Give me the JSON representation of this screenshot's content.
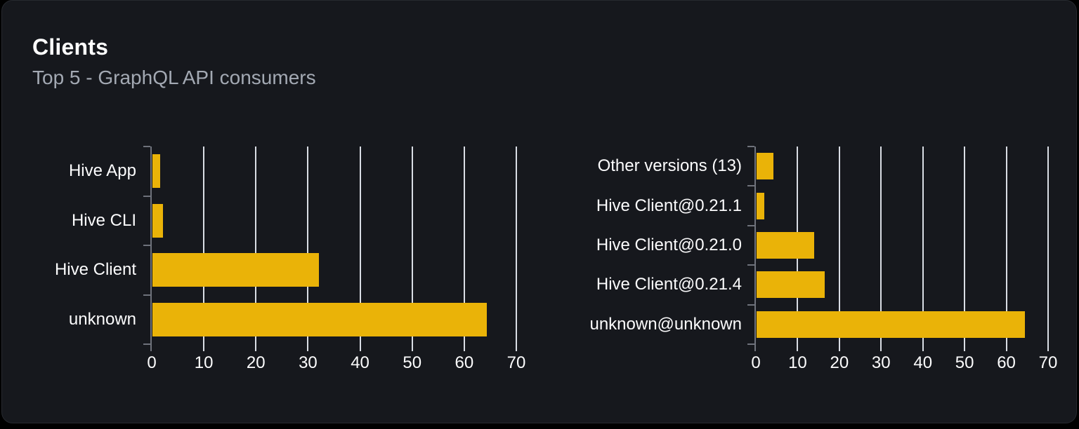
{
  "panel": {
    "title": "Clients",
    "subtitle": "Top 5 - GraphQL API consumers"
  },
  "colors": {
    "background": "#000000",
    "card": "#16181D",
    "card_border": "#26292F",
    "bar": "#EAB308",
    "gridline": "#D9DDE4",
    "axis": "#6E727B",
    "label_text": "#FCFCFD",
    "title_text": "#FFFFFF",
    "subtitle_text": "#A3A9B3"
  },
  "chart_data": [
    {
      "type": "bar",
      "orientation": "horizontal",
      "name": "clients-by-name",
      "categories": [
        "Hive App",
        "Hive CLI",
        "Hive Client",
        "unknown"
      ],
      "values": [
        1.6,
        2.1,
        32.1,
        64.3
      ],
      "xticks": [
        0,
        10,
        20,
        30,
        40,
        50,
        60,
        70
      ],
      "xlim": [
        0,
        70
      ],
      "grid": true,
      "legend": "none"
    },
    {
      "type": "bar",
      "orientation": "horizontal",
      "name": "clients-by-version",
      "categories": [
        "Other versions (13)",
        "Hive Client@0.21.1",
        "Hive Client@0.21.0",
        "Hive Client@0.21.4",
        "unknown@unknown"
      ],
      "values": [
        4.2,
        2.1,
        14.0,
        16.5,
        64.5
      ],
      "xticks": [
        0,
        10,
        20,
        30,
        40,
        50,
        60,
        70
      ],
      "xlim": [
        0,
        70
      ],
      "grid": true,
      "legend": "none"
    }
  ]
}
